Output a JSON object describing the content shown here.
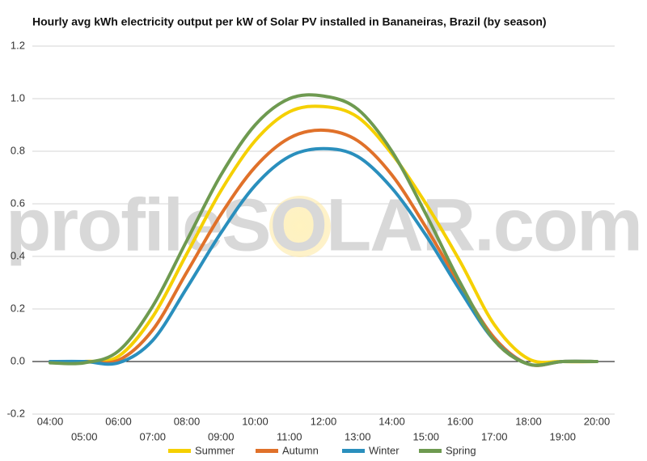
{
  "chart_data": {
    "type": "line",
    "title": "Hourly avg kWh electricity output per kW of Solar PV installed in Bananeiras, Brazil (by season)",
    "watermark": "profileSOLAR.com",
    "categories": [
      "04:00",
      "05:00",
      "06:00",
      "07:00",
      "08:00",
      "09:00",
      "10:00",
      "11:00",
      "12:00",
      "13:00",
      "14:00",
      "15:00",
      "16:00",
      "17:00",
      "18:00",
      "19:00",
      "20:00"
    ],
    "series": [
      {
        "name": "Summer",
        "color": "#f5d000",
        "values": [
          0,
          0,
          0.02,
          0.17,
          0.41,
          0.65,
          0.84,
          0.95,
          0.97,
          0.93,
          0.79,
          0.6,
          0.38,
          0.14,
          0.01,
          0,
          0
        ]
      },
      {
        "name": "Autumn",
        "color": "#e0712a",
        "values": [
          0,
          0,
          0.005,
          0.12,
          0.34,
          0.56,
          0.74,
          0.85,
          0.88,
          0.84,
          0.71,
          0.51,
          0.29,
          0.09,
          -0.01,
          0,
          0
        ]
      },
      {
        "name": "Winter",
        "color": "#2a8fbd",
        "values": [
          0,
          0,
          -0.005,
          0.08,
          0.28,
          0.49,
          0.67,
          0.78,
          0.81,
          0.78,
          0.66,
          0.48,
          0.27,
          0.08,
          -0.01,
          0,
          0
        ]
      },
      {
        "name": "Spring",
        "color": "#6e9a50",
        "values": [
          -0.005,
          -0.005,
          0.04,
          0.21,
          0.46,
          0.71,
          0.9,
          1.0,
          1.01,
          0.96,
          0.8,
          0.56,
          0.3,
          0.08,
          -0.01,
          0,
          0
        ]
      }
    ],
    "ylim": [
      -0.2,
      1.2
    ],
    "yticks": [
      -0.2,
      {
        "value": 0,
        "label": "0.0"
      },
      0.2,
      0.4,
      0.6,
      0.8,
      {
        "value": 1,
        "label": "1.0"
      },
      1.2
    ],
    "grid": true
  }
}
